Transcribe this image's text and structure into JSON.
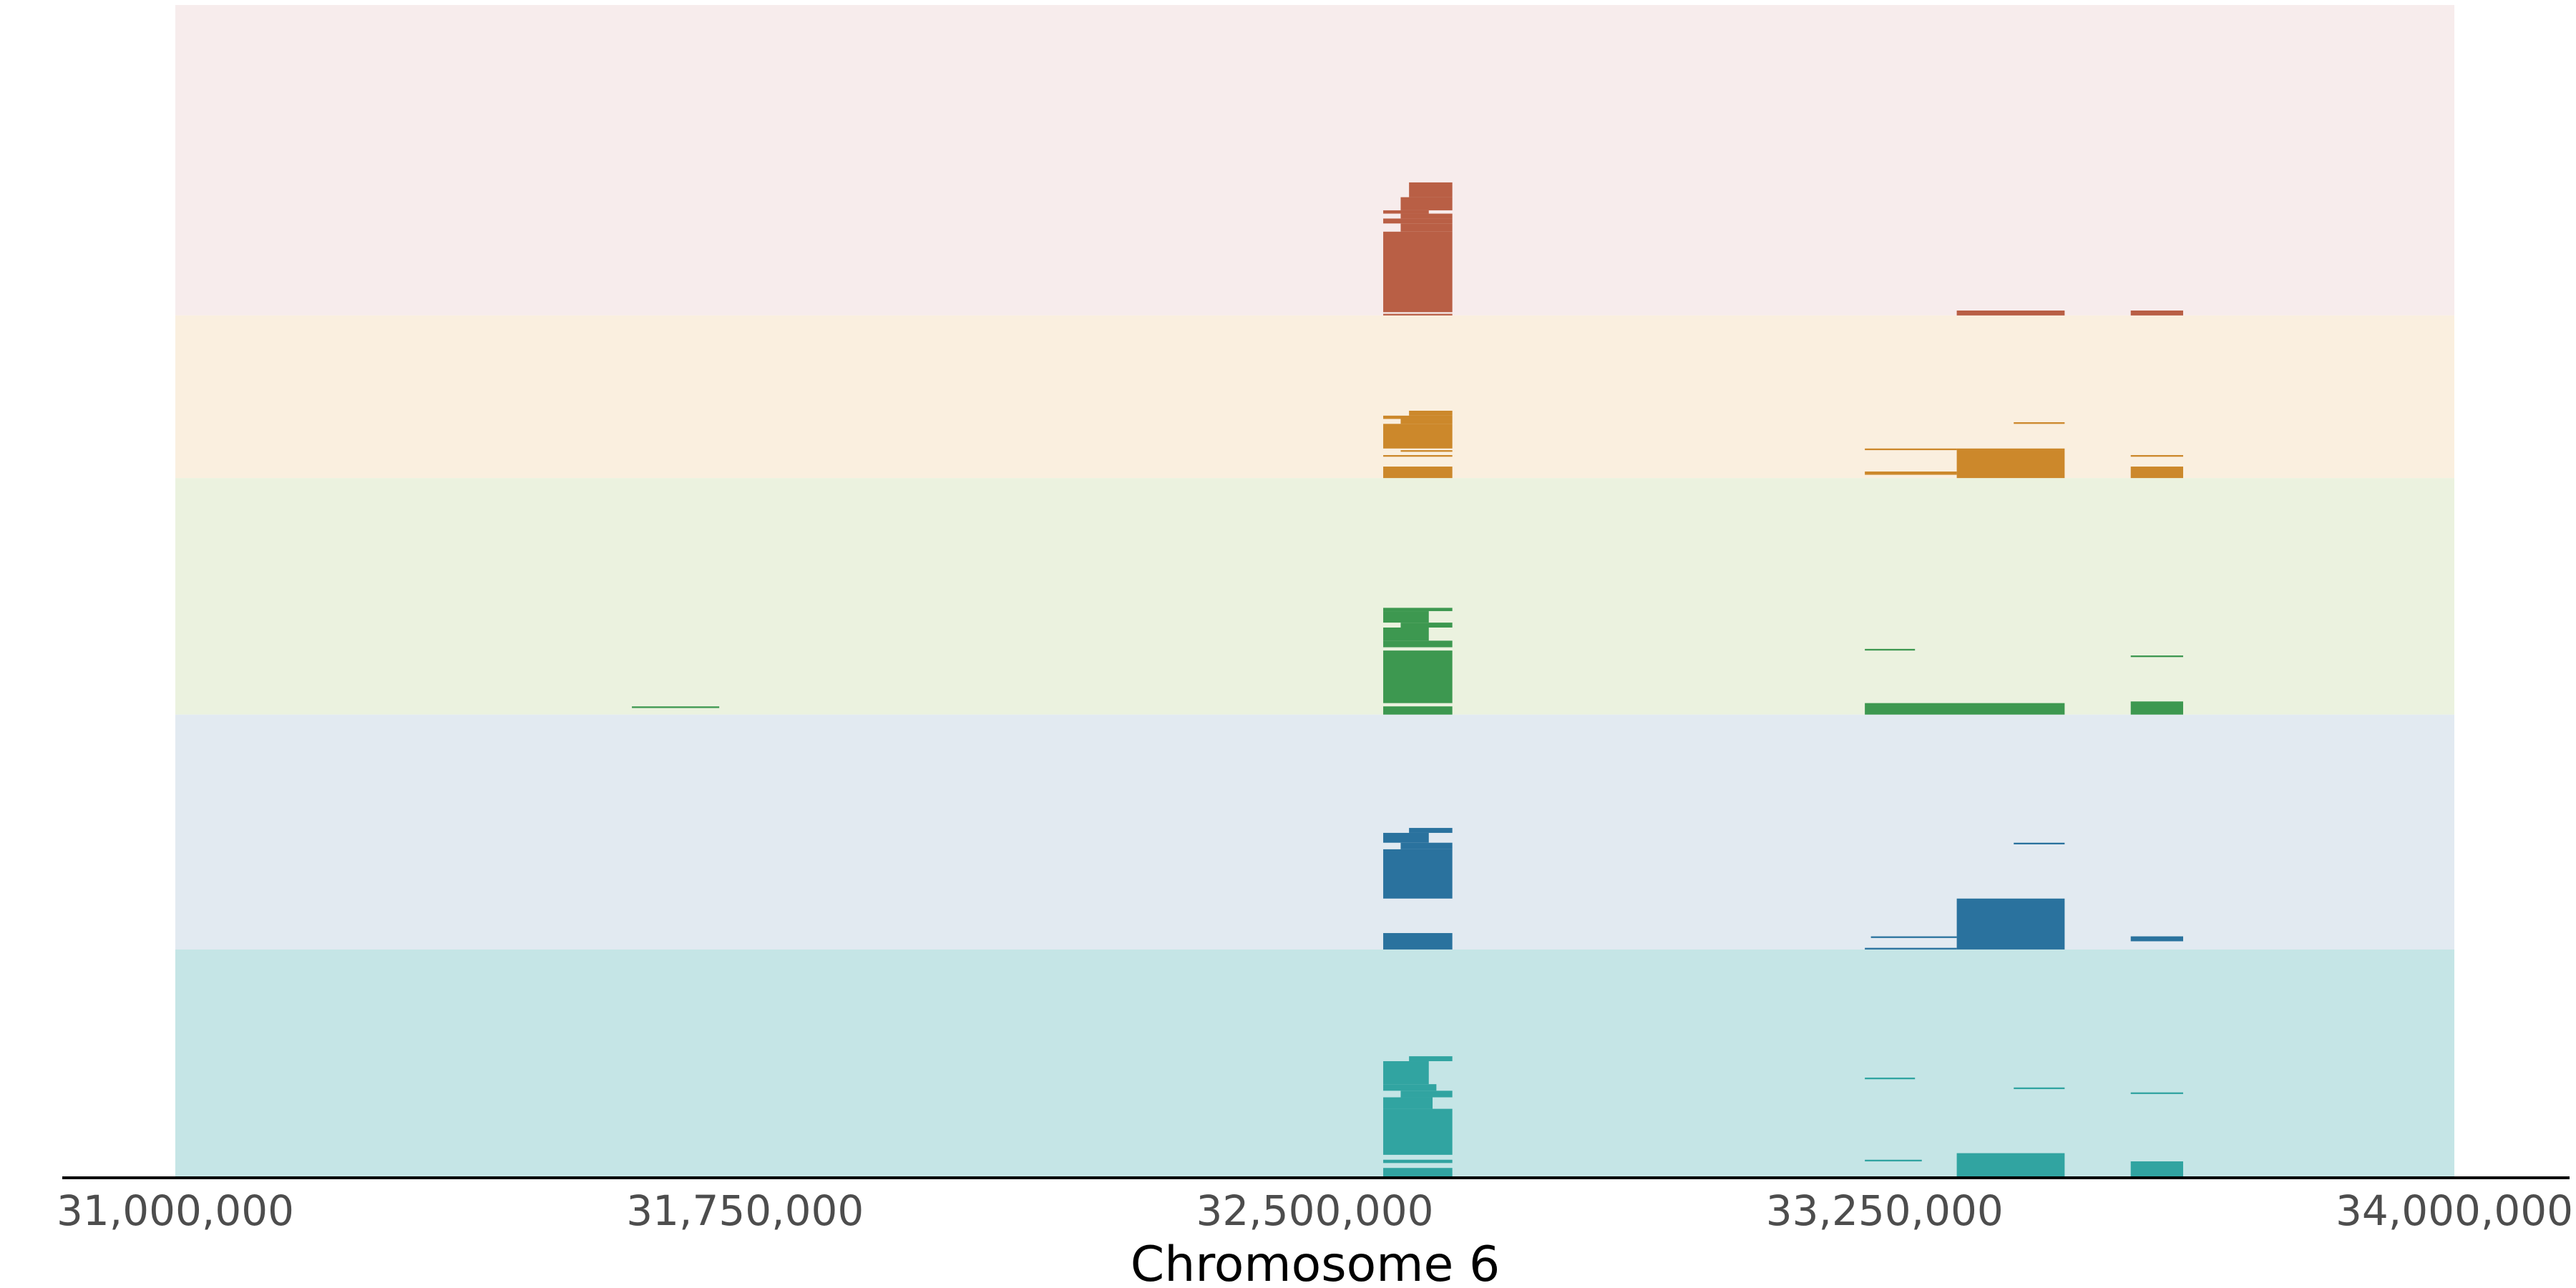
{
  "chart_data": {
    "type": "segment-track",
    "xlabel": "Chromosome 6",
    "xlim": [
      31000000,
      34000000
    ],
    "xticks": [
      31000000,
      31750000,
      32500000,
      33250000,
      34000000
    ],
    "xtick_labels": [
      "31,000,000",
      "31,750,000",
      "32,500,000",
      "33,250,000",
      "34,000,000"
    ],
    "grid": false,
    "tracks": [
      {
        "color": "#b95f45",
        "background": "#f7ecec",
        "rows": 189,
        "segments": [
          [
            32624000,
            32681000,
            108,
            117
          ],
          [
            32613000,
            32681000,
            117,
            125
          ],
          [
            32590000,
            32650000,
            125,
            127
          ],
          [
            32613000,
            32681000,
            127,
            130
          ],
          [
            32590000,
            32681000,
            130,
            133
          ],
          [
            32613000,
            32681000,
            133,
            138
          ],
          [
            32590000,
            32681000,
            138,
            187
          ],
          [
            32590000,
            32681000,
            188,
            189
          ],
          [
            33345000,
            33487000,
            186,
            189
          ],
          [
            33574000,
            33643000,
            186,
            189
          ]
        ]
      },
      {
        "color": "#cc882b",
        "background": "#faefdf",
        "rows": 99,
        "segments": [
          [
            32624000,
            32681000,
            58,
            61
          ],
          [
            32590000,
            32681000,
            61,
            63
          ],
          [
            32613000,
            32681000,
            63,
            66
          ],
          [
            32590000,
            32681000,
            66,
            81
          ],
          [
            32613000,
            32681000,
            82,
            83
          ],
          [
            32590000,
            32681000,
            85,
            86
          ],
          [
            32590000,
            32681000,
            92,
            99
          ],
          [
            33420000,
            33487000,
            65,
            66
          ],
          [
            33224000,
            33345000,
            81,
            82
          ],
          [
            33345000,
            33487000,
            81,
            99
          ],
          [
            33224000,
            33345000,
            95,
            97
          ],
          [
            33574000,
            33643000,
            85,
            86
          ],
          [
            33574000,
            33643000,
            92,
            99
          ]
        ]
      },
      {
        "color": "#3d9850",
        "background": "#ebf2df",
        "rows": 144,
        "segments": [
          [
            32590000,
            32681000,
            79,
            81
          ],
          [
            32590000,
            32650000,
            81,
            88
          ],
          [
            32613000,
            32681000,
            88,
            91
          ],
          [
            32590000,
            32650000,
            91,
            99
          ],
          [
            32590000,
            32681000,
            99,
            103
          ],
          [
            32590000,
            32681000,
            105,
            137
          ],
          [
            32590000,
            32681000,
            139,
            144
          ],
          [
            31601000,
            31716000,
            139,
            140
          ],
          [
            33224000,
            33290000,
            104,
            105
          ],
          [
            33224000,
            33487000,
            137,
            144
          ],
          [
            33574000,
            33643000,
            108,
            109
          ],
          [
            33574000,
            33643000,
            136,
            144
          ]
        ]
      },
      {
        "color": "#2a729e",
        "background": "#e2eaf1",
        "rows": 143,
        "segments": [
          [
            32624000,
            32681000,
            69,
            72
          ],
          [
            32590000,
            32650000,
            72,
            78
          ],
          [
            32613000,
            32681000,
            78,
            82
          ],
          [
            32590000,
            32681000,
            82,
            112
          ],
          [
            32590000,
            32681000,
            133,
            143
          ],
          [
            33420000,
            33487000,
            78,
            79
          ],
          [
            33345000,
            33487000,
            112,
            143
          ],
          [
            33232000,
            33345000,
            135,
            136
          ],
          [
            33224000,
            33345000,
            142,
            143
          ],
          [
            33574000,
            33643000,
            135,
            138
          ]
        ]
      },
      {
        "color": "#31a4a1",
        "background": "#c5e5e6",
        "rows": 139,
        "segments": [
          [
            32624000,
            32681000,
            65,
            68
          ],
          [
            32590000,
            32650000,
            68,
            82
          ],
          [
            32590000,
            32660000,
            82,
            86
          ],
          [
            32613000,
            32681000,
            86,
            90
          ],
          [
            32590000,
            32655000,
            90,
            97
          ],
          [
            32590000,
            32681000,
            97,
            125
          ],
          [
            32590000,
            32681000,
            128,
            130
          ],
          [
            32590000,
            32681000,
            133,
            139
          ],
          [
            33224000,
            33290000,
            78,
            79
          ],
          [
            33420000,
            33487000,
            84,
            85
          ],
          [
            33574000,
            33643000,
            87,
            88
          ],
          [
            33224000,
            33299000,
            128,
            129
          ],
          [
            33345000,
            33487000,
            124,
            139
          ],
          [
            33574000,
            33643000,
            129,
            139
          ]
        ]
      }
    ]
  }
}
